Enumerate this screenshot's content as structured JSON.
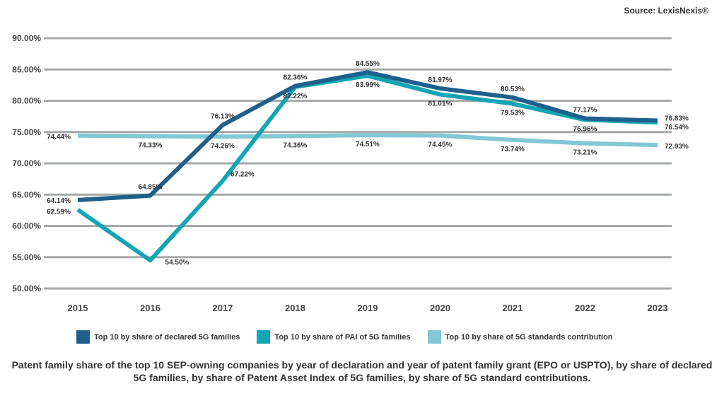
{
  "source": "Source: LexisNexis®",
  "caption": "Patent family share of the top 10 SEP-owning companies by year of declaration and year of patent family grant (EPO or USPTO), by share of declared 5G families, by share of Patent Asset Index of 5G families, by share of 5G standard contributions.",
  "legend": [
    {
      "label": "Top 10 by share of declared 5G families",
      "color": "#1f5f8b"
    },
    {
      "label": "Top 10 by share of PAI of 5G families",
      "color": "#14a5b4"
    },
    {
      "label": "Top 10 by share of 5G standards contribution",
      "color": "#82c7d6"
    }
  ],
  "chart_data": {
    "type": "line",
    "title": "",
    "xlabel": "",
    "ylabel": "",
    "ylim": [
      50,
      90
    ],
    "yticks": [
      "50.00%",
      "55.00%",
      "60.00%",
      "65.00%",
      "70.00%",
      "75.00%",
      "80.00%",
      "85.00%",
      "90.00%"
    ],
    "grid": true,
    "legend_position": "bottom",
    "categories": [
      "2015",
      "2016",
      "2017",
      "2018",
      "2019",
      "2020",
      "2021",
      "2022",
      "2023"
    ],
    "series": [
      {
        "name": "Top 10 by share of declared 5G families",
        "color": "#1f5f8b",
        "values": [
          64.14,
          64.85,
          76.13,
          82.36,
          84.55,
          81.97,
          80.53,
          77.17,
          76.83
        ],
        "labels": [
          "64.14%",
          "64.85%",
          "76.13%",
          "82.36%",
          "84.55%",
          "81.97%",
          "80.53%",
          "77.17%",
          "76.83%"
        ]
      },
      {
        "name": "Top 10 by share of PAI of 5G families",
        "color": "#14a5b4",
        "values": [
          62.59,
          54.5,
          67.22,
          82.22,
          83.99,
          81.01,
          79.53,
          76.96,
          76.54
        ],
        "labels": [
          "62.59%",
          "54.50%",
          "67.22%",
          "82.22%",
          "83.99%",
          "81.01%",
          "79.53%",
          "76.96%",
          "76.54%"
        ]
      },
      {
        "name": "Top 10 by share of 5G standards contribution",
        "color": "#82c7d6",
        "values": [
          74.44,
          74.33,
          74.26,
          74.36,
          74.51,
          74.45,
          73.74,
          73.21,
          72.93
        ],
        "labels": [
          "74.44%",
          "74.33%",
          "74.26%",
          "74.36%",
          "74.51%",
          "74.45%",
          "73.74%",
          "73.21%",
          "72.93%"
        ]
      }
    ]
  }
}
